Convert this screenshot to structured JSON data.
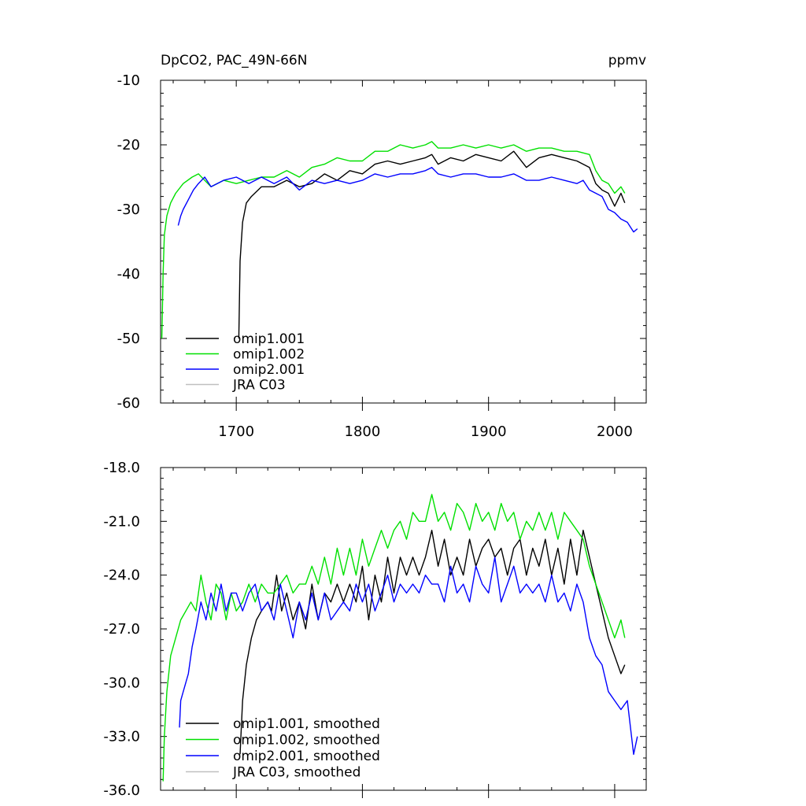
{
  "chart_data": [
    {
      "type": "line",
      "title_left": "DpCO2, PAC_49N-66N",
      "title_right": "ppmv",
      "xlim": [
        1640,
        2025
      ],
      "ylim": [
        -60,
        -10
      ],
      "yticks": [
        -10,
        -20,
        -30,
        -40,
        -50,
        -60
      ],
      "ytick_labels": [
        "-10",
        "-20",
        "-30",
        "-40",
        "-50",
        "-60"
      ],
      "xticks": [
        1700,
        1800,
        1900,
        2000
      ],
      "xtick_labels": [
        "1700",
        "1800",
        "1900",
        "2000"
      ],
      "legend_position": "bottom-left",
      "series": [
        {
          "name": "omip1.001",
          "color": "#000000",
          "x": [
            1702,
            1703,
            1705,
            1708,
            1712,
            1720,
            1730,
            1740,
            1750,
            1760,
            1770,
            1780,
            1790,
            1800,
            1810,
            1820,
            1830,
            1840,
            1850,
            1855,
            1860,
            1870,
            1880,
            1890,
            1900,
            1910,
            1920,
            1930,
            1940,
            1950,
            1960,
            1970,
            1980,
            1985,
            1990,
            1995,
            2000,
            2005,
            2008
          ],
          "y": [
            -50,
            -38,
            -32,
            -29,
            -28,
            -26.5,
            -26.5,
            -25.5,
            -26.5,
            -26,
            -24.5,
            -25.5,
            -24,
            -24.5,
            -23,
            -22.5,
            -23,
            -22.5,
            -22,
            -21.5,
            -23,
            -22,
            -22.5,
            -21.5,
            -22,
            -22.5,
            -21,
            -23.5,
            -22,
            -21.5,
            -22,
            -22.5,
            -23.5,
            -26,
            -27,
            -27.5,
            -29.5,
            -27.5,
            -29
          ]
        },
        {
          "name": "omip1.002",
          "color": "#00e000",
          "x": [
            1641,
            1642,
            1643,
            1645,
            1648,
            1652,
            1658,
            1665,
            1670,
            1680,
            1690,
            1700,
            1710,
            1720,
            1730,
            1740,
            1750,
            1760,
            1770,
            1780,
            1790,
            1800,
            1810,
            1820,
            1830,
            1840,
            1850,
            1855,
            1860,
            1870,
            1880,
            1890,
            1900,
            1910,
            1920,
            1930,
            1940,
            1950,
            1960,
            1970,
            1980,
            1985,
            1990,
            1995,
            2000,
            2005,
            2008
          ],
          "y": [
            -50,
            -40,
            -34,
            -31,
            -29,
            -27.5,
            -26,
            -25,
            -24.5,
            -26.5,
            -25.5,
            -26,
            -25.5,
            -25,
            -25,
            -24,
            -25,
            -23.5,
            -23,
            -22,
            -22.5,
            -22.5,
            -21,
            -21,
            -20,
            -20.5,
            -20,
            -19.5,
            -20.5,
            -20.5,
            -20,
            -20.5,
            -20,
            -20.5,
            -20,
            -21,
            -20.5,
            -20.5,
            -21,
            -21,
            -21.5,
            -24,
            -25.5,
            -26,
            -27.5,
            -26.5,
            -27.5
          ]
        },
        {
          "name": "omip2.001",
          "color": "#0000ff",
          "x": [
            1654,
            1656,
            1658,
            1662,
            1666,
            1670,
            1675,
            1680,
            1690,
            1700,
            1710,
            1720,
            1730,
            1740,
            1750,
            1760,
            1770,
            1780,
            1790,
            1800,
            1810,
            1820,
            1830,
            1840,
            1850,
            1855,
            1860,
            1870,
            1880,
            1890,
            1900,
            1910,
            1920,
            1930,
            1940,
            1950,
            1960,
            1970,
            1975,
            1980,
            1985,
            1990,
            1995,
            2000,
            2005,
            2010,
            2015,
            2018
          ],
          "y": [
            -32.5,
            -31,
            -30,
            -28.5,
            -27,
            -26,
            -25,
            -26.5,
            -25.5,
            -25,
            -26,
            -25,
            -26,
            -25,
            -27,
            -25.5,
            -26,
            -25.5,
            -26,
            -25.5,
            -24.5,
            -25,
            -24.5,
            -24.5,
            -24,
            -23.5,
            -24.5,
            -25,
            -24.5,
            -24.5,
            -25,
            -25,
            -24.5,
            -25.5,
            -25.5,
            -25,
            -25.5,
            -26,
            -25.5,
            -27,
            -27.5,
            -28,
            -30,
            -30.5,
            -31.5,
            -32,
            -33.5,
            -33
          ]
        },
        {
          "name": "JRA C03",
          "color": "#c0c0c0",
          "x": [],
          "y": []
        }
      ]
    },
    {
      "type": "line",
      "xlim": [
        1640,
        2025
      ],
      "ylim": [
        -36,
        -18
      ],
      "yticks": [
        -18,
        -21,
        -24,
        -27,
        -30,
        -33,
        -36
      ],
      "ytick_labels": [
        "-18.0",
        "-21.0",
        "-24.0",
        "-27.0",
        "-30.0",
        "-33.0",
        "-36.0"
      ],
      "xticks": [
        1700,
        1800,
        1900,
        2000
      ],
      "legend_position": "bottom-left",
      "series": [
        {
          "name": "omip1.001, smoothed",
          "color": "#000000",
          "x": [
            1703,
            1705,
            1708,
            1712,
            1716,
            1720,
            1725,
            1728,
            1732,
            1736,
            1740,
            1745,
            1750,
            1755,
            1760,
            1765,
            1770,
            1775,
            1780,
            1785,
            1790,
            1795,
            1800,
            1805,
            1810,
            1815,
            1820,
            1825,
            1830,
            1835,
            1840,
            1845,
            1850,
            1855,
            1860,
            1865,
            1870,
            1875,
            1880,
            1885,
            1890,
            1895,
            1900,
            1905,
            1910,
            1915,
            1920,
            1925,
            1930,
            1935,
            1940,
            1945,
            1950,
            1955,
            1960,
            1965,
            1970,
            1975,
            1980,
            1985,
            1990,
            1995,
            2000,
            2005,
            2008
          ],
          "y": [
            -34,
            -31,
            -29,
            -27.5,
            -26.5,
            -26,
            -25.5,
            -26,
            -24,
            -26,
            -25,
            -26.5,
            -25.5,
            -27,
            -24.5,
            -26.5,
            -25,
            -25.5,
            -24.5,
            -25.5,
            -24.5,
            -25.5,
            -23.5,
            -26.5,
            -24,
            -25.5,
            -23,
            -25,
            -23,
            -24,
            -23,
            -24,
            -23,
            -21.5,
            -23.5,
            -22,
            -24,
            -23,
            -24,
            -22,
            -23.5,
            -22.5,
            -22,
            -23,
            -22.5,
            -24,
            -22.5,
            -22,
            -24,
            -22.5,
            -23.5,
            -22,
            -24,
            -22.5,
            -24.5,
            -22,
            -24,
            -21.5,
            -23,
            -24.5,
            -26,
            -27.5,
            -28.5,
            -29.5,
            -29
          ]
        },
        {
          "name": "omip1.002, smoothed",
          "color": "#00e000",
          "x": [
            1642,
            1643,
            1645,
            1648,
            1652,
            1656,
            1660,
            1664,
            1668,
            1672,
            1676,
            1680,
            1684,
            1688,
            1692,
            1696,
            1700,
            1705,
            1710,
            1715,
            1720,
            1725,
            1730,
            1735,
            1740,
            1745,
            1750,
            1755,
            1760,
            1765,
            1770,
            1775,
            1780,
            1785,
            1790,
            1795,
            1800,
            1805,
            1810,
            1815,
            1820,
            1825,
            1830,
            1835,
            1840,
            1845,
            1850,
            1855,
            1860,
            1865,
            1870,
            1875,
            1880,
            1885,
            1890,
            1895,
            1900,
            1905,
            1910,
            1915,
            1920,
            1925,
            1930,
            1935,
            1940,
            1945,
            1950,
            1955,
            1960,
            1965,
            1970,
            1975,
            1980,
            1985,
            1990,
            1995,
            2000,
            2005,
            2008
          ],
          "y": [
            -35.5,
            -33,
            -30.5,
            -28.5,
            -27.5,
            -26.5,
            -26,
            -25.5,
            -26,
            -24,
            -25.5,
            -26.5,
            -24.5,
            -25,
            -26.5,
            -25,
            -26,
            -25.5,
            -24.5,
            -25.5,
            -24.5,
            -25,
            -25,
            -24.5,
            -24,
            -25,
            -24.5,
            -24.5,
            -23.5,
            -24.5,
            -23,
            -24.5,
            -22.5,
            -24,
            -22.5,
            -24,
            -22,
            -23.5,
            -22.5,
            -21.5,
            -22.5,
            -21.5,
            -21,
            -22,
            -20.5,
            -21,
            -21,
            -19.5,
            -21,
            -20.5,
            -21.5,
            -20,
            -20.5,
            -21.5,
            -20,
            -21,
            -20.5,
            -21.5,
            -20,
            -21,
            -20.5,
            -22,
            -21,
            -21.5,
            -20.5,
            -21.5,
            -20.5,
            -22,
            -20.5,
            -21,
            -21.5,
            -22,
            -23.5,
            -24.5,
            -25.5,
            -26.5,
            -27.5,
            -26.5,
            -27.5
          ]
        },
        {
          "name": "omip2.001, smoothed",
          "color": "#0000ff",
          "x": [
            1655,
            1656,
            1658,
            1662,
            1665,
            1668,
            1672,
            1676,
            1680,
            1684,
            1688,
            1692,
            1696,
            1700,
            1705,
            1710,
            1715,
            1720,
            1725,
            1730,
            1735,
            1740,
            1745,
            1750,
            1755,
            1760,
            1765,
            1770,
            1775,
            1780,
            1785,
            1790,
            1795,
            1800,
            1805,
            1810,
            1815,
            1820,
            1825,
            1830,
            1835,
            1840,
            1845,
            1850,
            1855,
            1860,
            1865,
            1870,
            1875,
            1880,
            1885,
            1890,
            1895,
            1900,
            1905,
            1910,
            1915,
            1920,
            1925,
            1930,
            1935,
            1940,
            1945,
            1950,
            1955,
            1960,
            1965,
            1970,
            1975,
            1980,
            1985,
            1990,
            1995,
            2000,
            2005,
            2010,
            2015,
            2018
          ],
          "y": [
            -32.5,
            -31,
            -30.5,
            -29.5,
            -28,
            -27,
            -25.5,
            -26.5,
            -25,
            -26,
            -24.5,
            -26,
            -25,
            -25,
            -26,
            -25,
            -24.5,
            -26,
            -25.5,
            -26.5,
            -24.5,
            -26,
            -27.5,
            -25.5,
            -26.5,
            -25,
            -26.5,
            -25,
            -26.5,
            -26,
            -25.5,
            -26,
            -24.5,
            -25.5,
            -24.5,
            -26,
            -25,
            -24,
            -25.5,
            -24.5,
            -25,
            -24.5,
            -25,
            -24,
            -24.5,
            -24.5,
            -25.5,
            -23.5,
            -25,
            -24.5,
            -25.5,
            -23.5,
            -24.5,
            -25,
            -23,
            -25.5,
            -24.5,
            -23.5,
            -25,
            -24.5,
            -25,
            -24.5,
            -25.5,
            -24,
            -25.5,
            -25,
            -26,
            -24.5,
            -25.5,
            -27.5,
            -28.5,
            -29,
            -30.5,
            -31,
            -31.5,
            -31,
            -34,
            -33
          ]
        },
        {
          "name": "JRA C03, smoothed",
          "color": "#c0c0c0",
          "x": [],
          "y": []
        }
      ]
    }
  ]
}
